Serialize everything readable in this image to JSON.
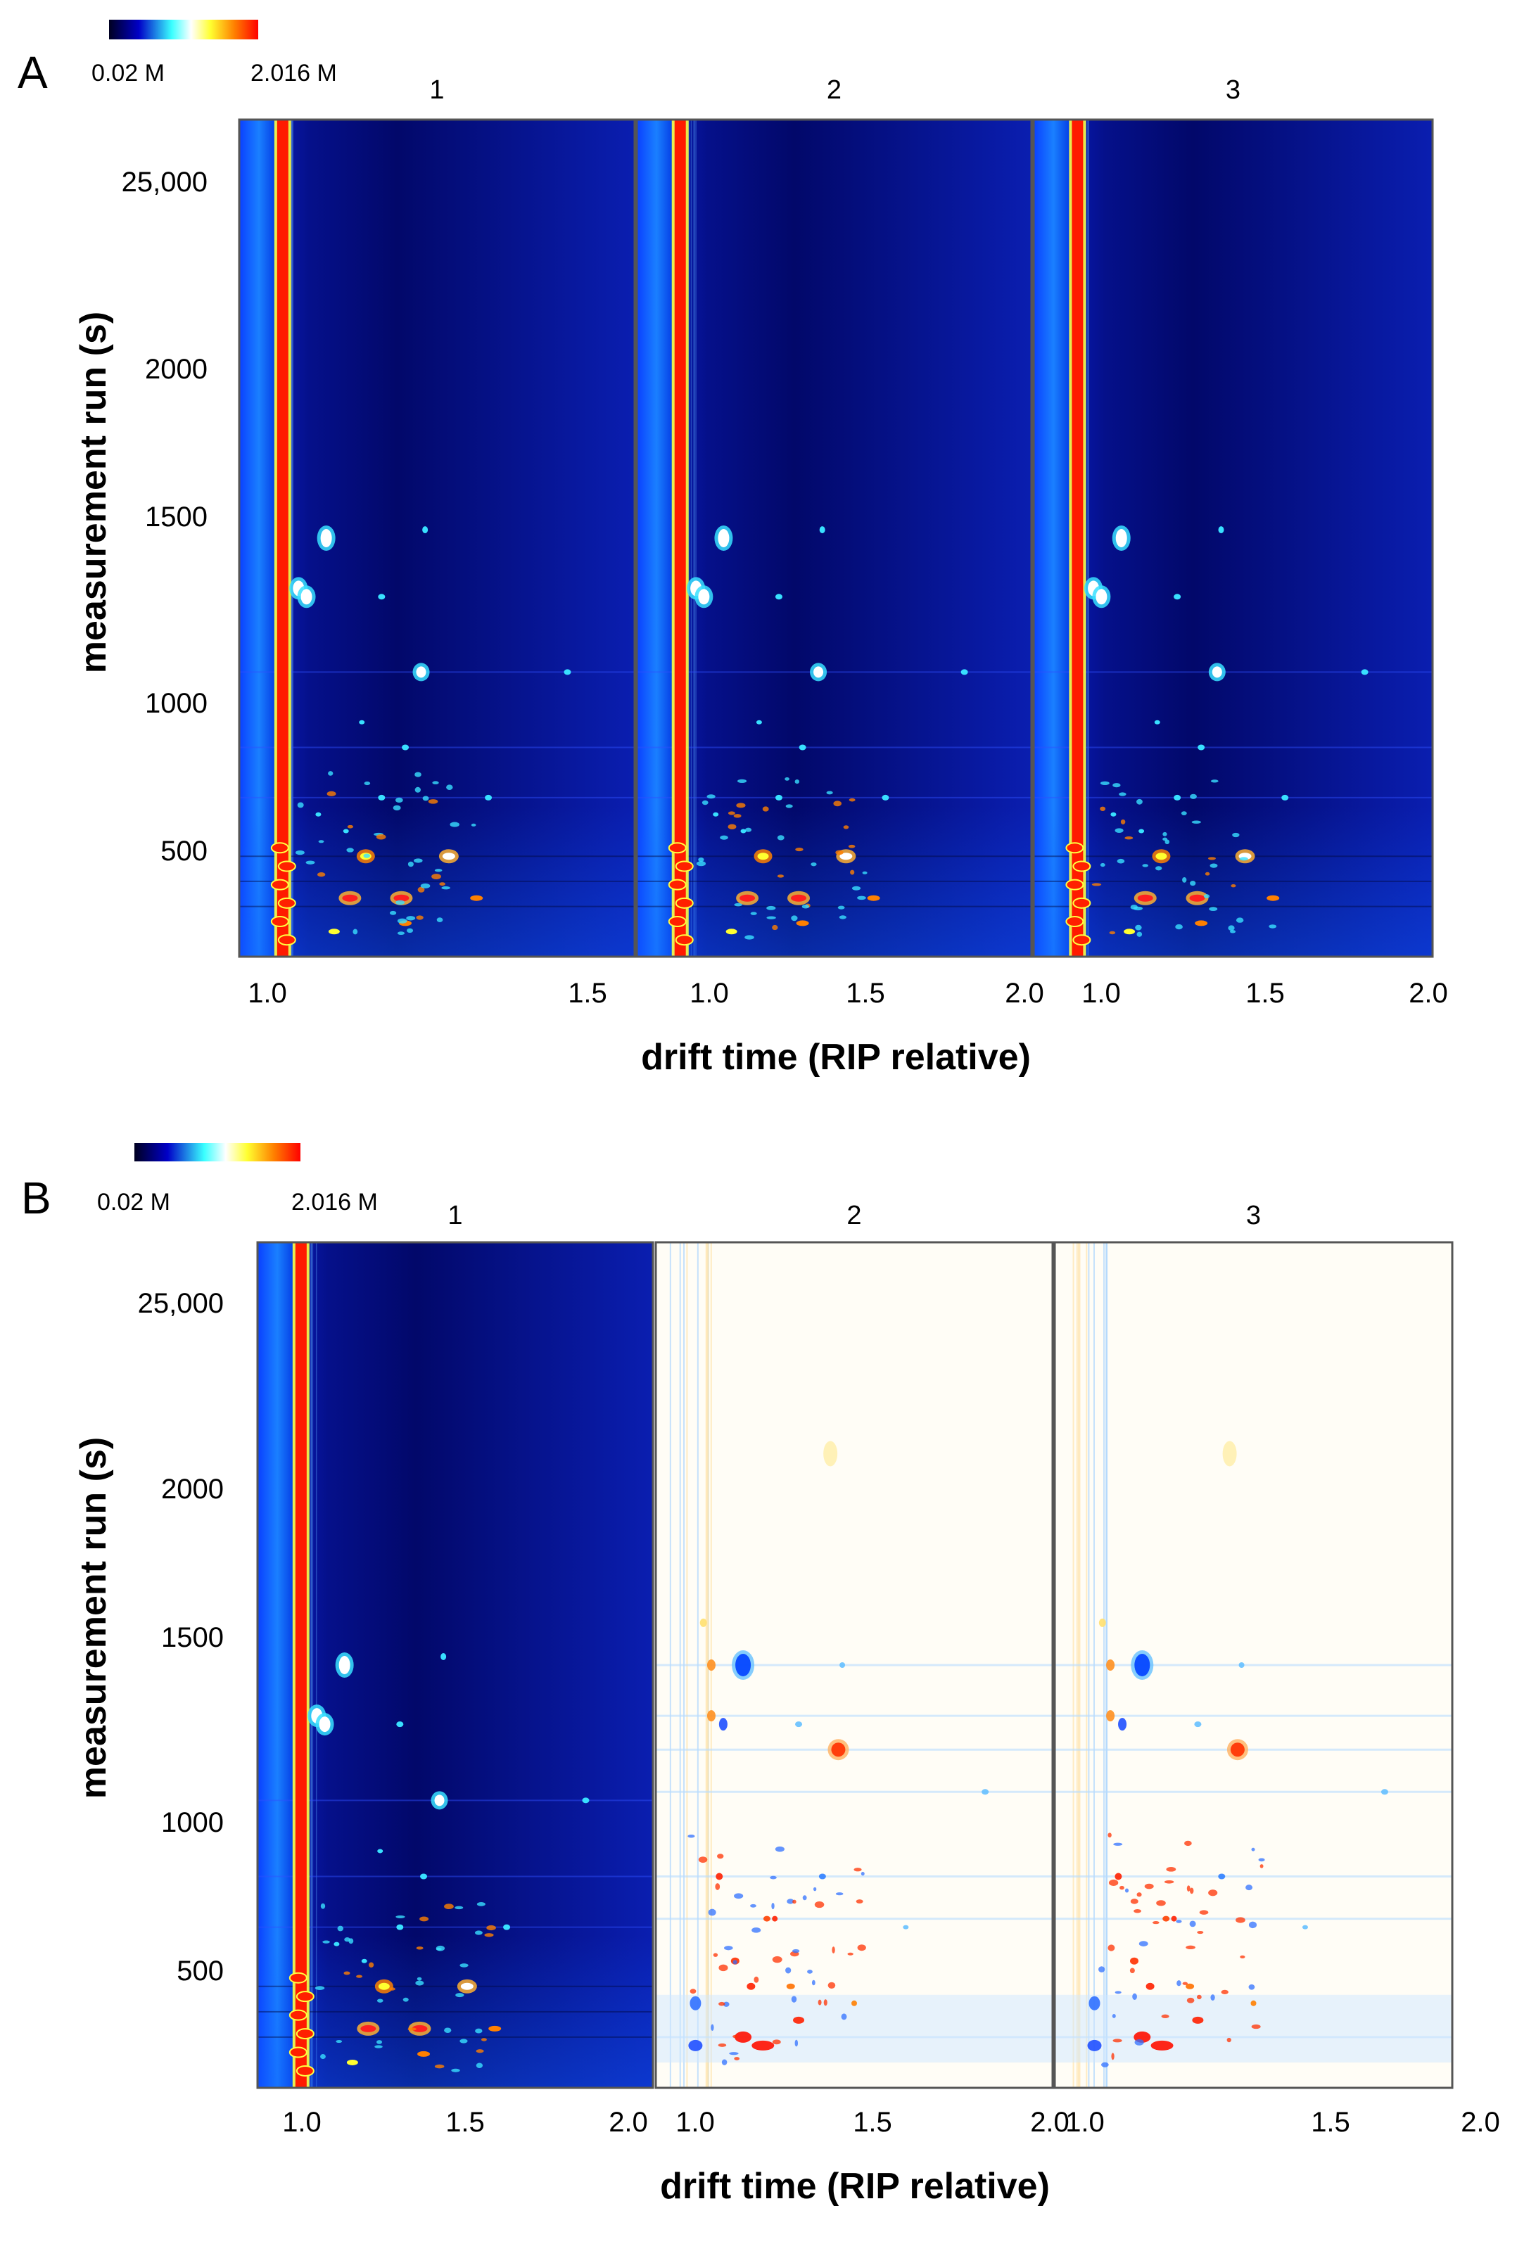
{
  "figure": {
    "panels": [
      {
        "letter": "A",
        "colorbar": {
          "min_label": "0.02 M",
          "max_label": "2.016 M",
          "colors": [
            "#000020",
            "#0000c8",
            "#39ffff",
            "#ffffff",
            "#ffff30",
            "#ff8000",
            "#ff0000"
          ]
        },
        "subplot_titles": [
          "1",
          "2",
          "3"
        ],
        "y_ticks": [
          "25,000",
          "2000",
          "1500",
          "1000",
          "500"
        ],
        "x_ticks": [
          "1.0",
          "1.5",
          "2.0"
        ],
        "xlabel": "drift time (RIP relative)",
        "ylabel": "measurement run (s)",
        "subplot_modes": [
          "intensity",
          "intensity",
          "intensity"
        ]
      },
      {
        "letter": "B",
        "colorbar": {
          "min_label": "0.02 M",
          "max_label": "2.016 M",
          "colors": [
            "#000020",
            "#0000c8",
            "#39ffff",
            "#ffffff",
            "#ffff30",
            "#ff8000",
            "#ff0000"
          ]
        },
        "subplot_titles": [
          "1",
          "2",
          "3"
        ],
        "y_ticks": [
          "25,000",
          "2000",
          "1500",
          "1000",
          "500"
        ],
        "x_ticks": [
          "1.0",
          "1.5",
          "2.0"
        ],
        "xlabel": "drift time (RIP relative)",
        "ylabel": "measurement run (s)",
        "subplot_modes": [
          "intensity",
          "difference",
          "difference"
        ]
      }
    ]
  },
  "chart_data": [
    {
      "type": "heatmap",
      "title": "A",
      "subplots": [
        "1",
        "2",
        "3"
      ],
      "xlabel": "drift time (RIP relative)",
      "ylabel": "measurement run (s)",
      "x_ticks": [
        1.0,
        1.5,
        2.0
      ],
      "y_ticks": [
        25000,
        2000,
        1500,
        1000,
        500
      ],
      "colorbar_range": [
        "0.02 M",
        "2.016 M"
      ],
      "rip_drift_time": 1.05
    },
    {
      "type": "heatmap",
      "title": "B",
      "subplots": [
        "1",
        "2",
        "3"
      ],
      "subplot_modes": [
        "intensity",
        "difference",
        "difference"
      ],
      "xlabel": "drift time (RIP relative)",
      "ylabel": "measurement run (s)",
      "x_ticks": [
        1.0,
        1.5,
        2.0
      ],
      "y_ticks": [
        25000,
        2000,
        1500,
        1000,
        500
      ],
      "colorbar_range": [
        "0.02 M",
        "2.016 M"
      ],
      "rip_drift_time": 1.05
    }
  ]
}
